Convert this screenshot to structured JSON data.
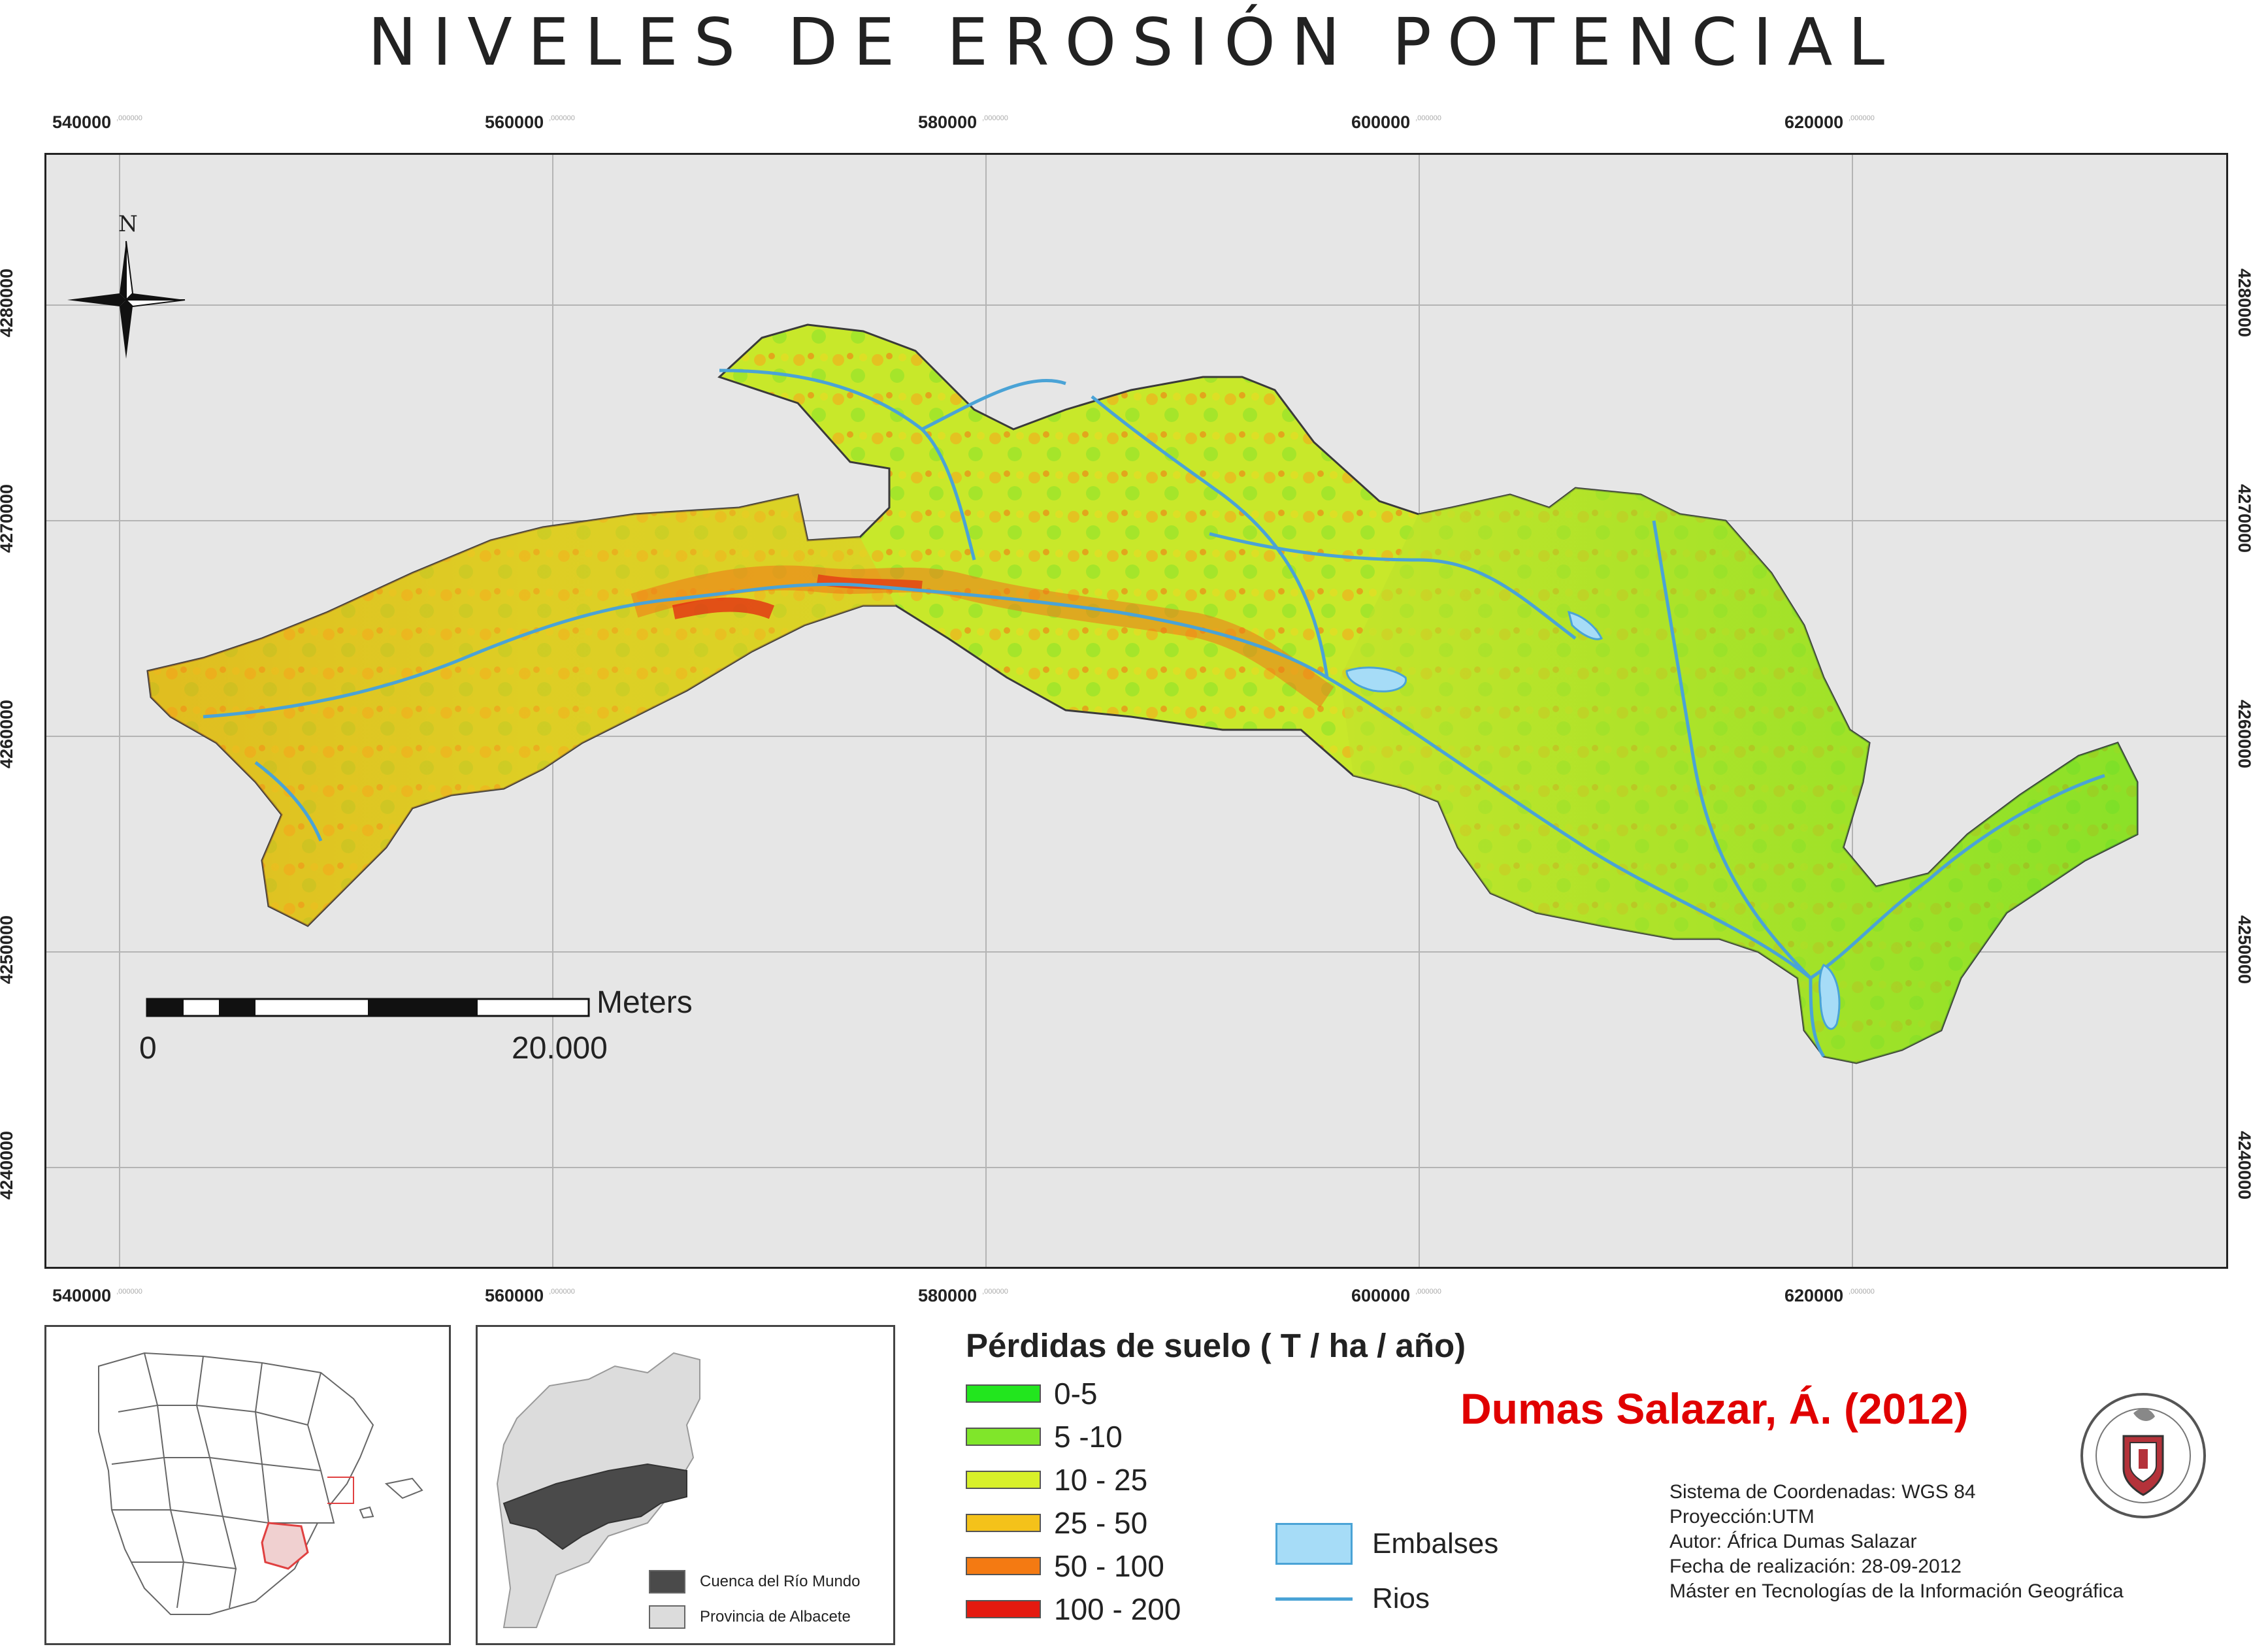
{
  "title": "NIVELES DE EROSIÓN POTENCIAL",
  "x_ticks": [
    "540000",
    "560000",
    "580000",
    "600000",
    "620000"
  ],
  "x_ticks_suffix": ",000000",
  "y_ticks": [
    "4280000",
    "4270000",
    "4260000",
    "4250000",
    "4240000"
  ],
  "north_label": "N",
  "scale_bar": {
    "unit": "Meters",
    "start": "0",
    "end": "20.000"
  },
  "legend": {
    "title": "Pérdidas de suelo ( T / ha / año)",
    "classes": [
      {
        "label": "0-5",
        "color": "#22e61e"
      },
      {
        "label": "5 -10",
        "color": "#80e62a"
      },
      {
        "label": "10 - 25",
        "color": "#d8f02a"
      },
      {
        "label": "25 - 50",
        "color": "#f4c21a"
      },
      {
        "label": "50 - 100",
        "color": "#f47a12"
      },
      {
        "label": "100 - 200",
        "color": "#e41a10"
      }
    ],
    "embalses_label": "Embalses",
    "embalses_color": "#a6dcf7",
    "rios_label": "Rios",
    "rios_color": "#4aa3d6"
  },
  "credit": "Dumas Salazar, Á.  (2012)",
  "metadata_lines": [
    "Sistema de Coordenadas: WGS 84",
    "Proyección:UTM",
    "Autor: África Dumas Salazar",
    "Fecha de realización: 28-09-2012",
    "Máster en Tecnologías de la Información Geográfica"
  ],
  "inset_albacete": {
    "legend": [
      {
        "label": "Cuenca del Río Mundo",
        "color": "#4a4a4a"
      },
      {
        "label": "Provincia de Albacete",
        "color": "#dcdcdc"
      }
    ]
  },
  "icons": [
    "north-arrow-icon",
    "university-seal-icon"
  ]
}
